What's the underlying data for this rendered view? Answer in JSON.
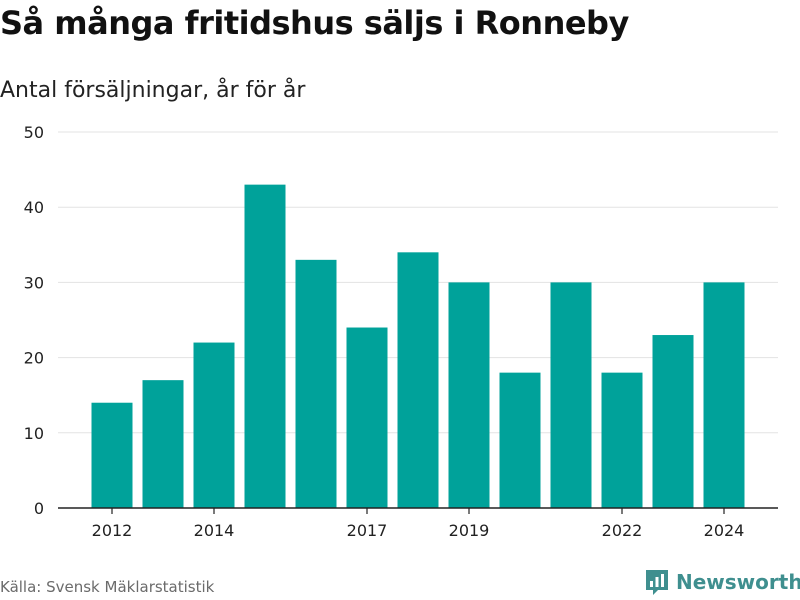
{
  "header": {
    "title": "Så många fritidshus säljs i Ronneby",
    "subtitle": "Antal försäljningar, år för år"
  },
  "footer": {
    "source": "Källa: Svensk Mäklarstatistik",
    "brand": "Newsworthy"
  },
  "colors": {
    "bar": "#00a29a",
    "grid": "#e3e3e3",
    "axis": "#222222",
    "brand": "#3f8f8f"
  },
  "chart_data": {
    "type": "bar",
    "categories": [
      2012,
      2013,
      2014,
      2015,
      2016,
      2017,
      2018,
      2019,
      2020,
      2021,
      2022,
      2023,
      2024
    ],
    "values": [
      14,
      17,
      22,
      43,
      33,
      24,
      34,
      30,
      18,
      30,
      18,
      23,
      30
    ],
    "x_tick_labels": [
      "2012",
      "2014",
      "2017",
      "2019",
      "2022",
      "2024"
    ],
    "y_ticks": [
      0,
      10,
      20,
      30,
      40,
      50
    ],
    "ylim": [
      0,
      50
    ],
    "grid": true,
    "legend": "none",
    "xlabel": "",
    "ylabel": ""
  }
}
